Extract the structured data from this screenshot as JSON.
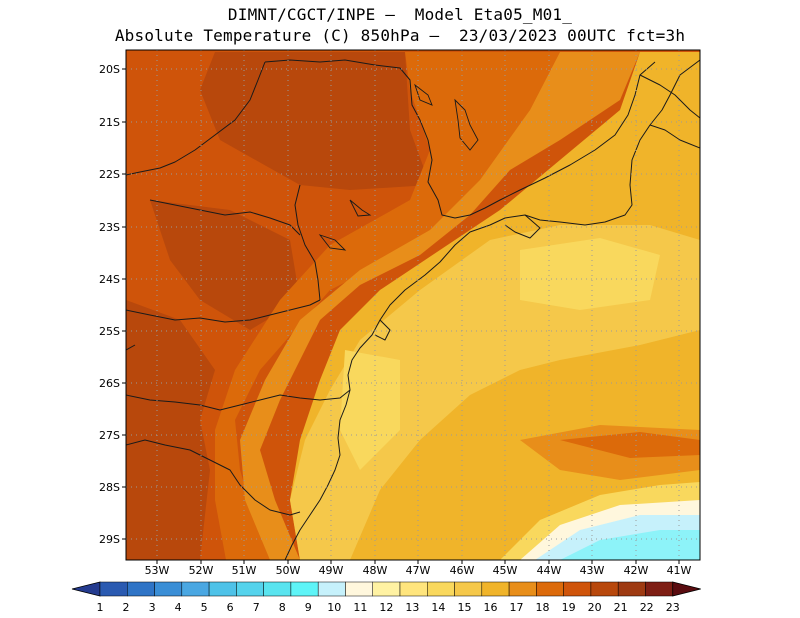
{
  "header": {
    "title_line1": "DIMNT/CGCT/INPE –  Model Eta05_M01_",
    "title_line2": "Absolute Temperature (C) 850hPa –  23/03/2023 00UTC fct=3h"
  },
  "map": {
    "lat_labels": [
      "20S",
      "21S",
      "22S",
      "23S",
      "24S",
      "25S",
      "26S",
      "27S",
      "28S",
      "29S"
    ],
    "lon_labels": [
      "53W",
      "52W",
      "51W",
      "50W",
      "49W",
      "48W",
      "47W",
      "46W",
      "45W",
      "44W",
      "43W",
      "42W",
      "41W"
    ]
  },
  "colorbar": {
    "labels": [
      "1",
      "2",
      "3",
      "4",
      "5",
      "6",
      "7",
      "8",
      "9",
      "10",
      "11",
      "12",
      "13",
      "14",
      "15",
      "16",
      "17",
      "18",
      "19",
      "20",
      "21",
      "22",
      "23"
    ],
    "colors": [
      "#243b8f",
      "#2a5ab1",
      "#2f74c6",
      "#3a8ed6",
      "#4aa7e2",
      "#4ec2e8",
      "#55d3ec",
      "#59e4ef",
      "#5ef4f7",
      "#c6f1fb",
      "#fff7dd",
      "#fff2a3",
      "#ffe57d",
      "#f9d85d",
      "#f5c84a",
      "#f0b42a",
      "#e88e1a",
      "#dc6a0a",
      "#cf540a",
      "#b8480c",
      "#9e3a12",
      "#7e1e14",
      "#5a0c10"
    ]
  }
}
